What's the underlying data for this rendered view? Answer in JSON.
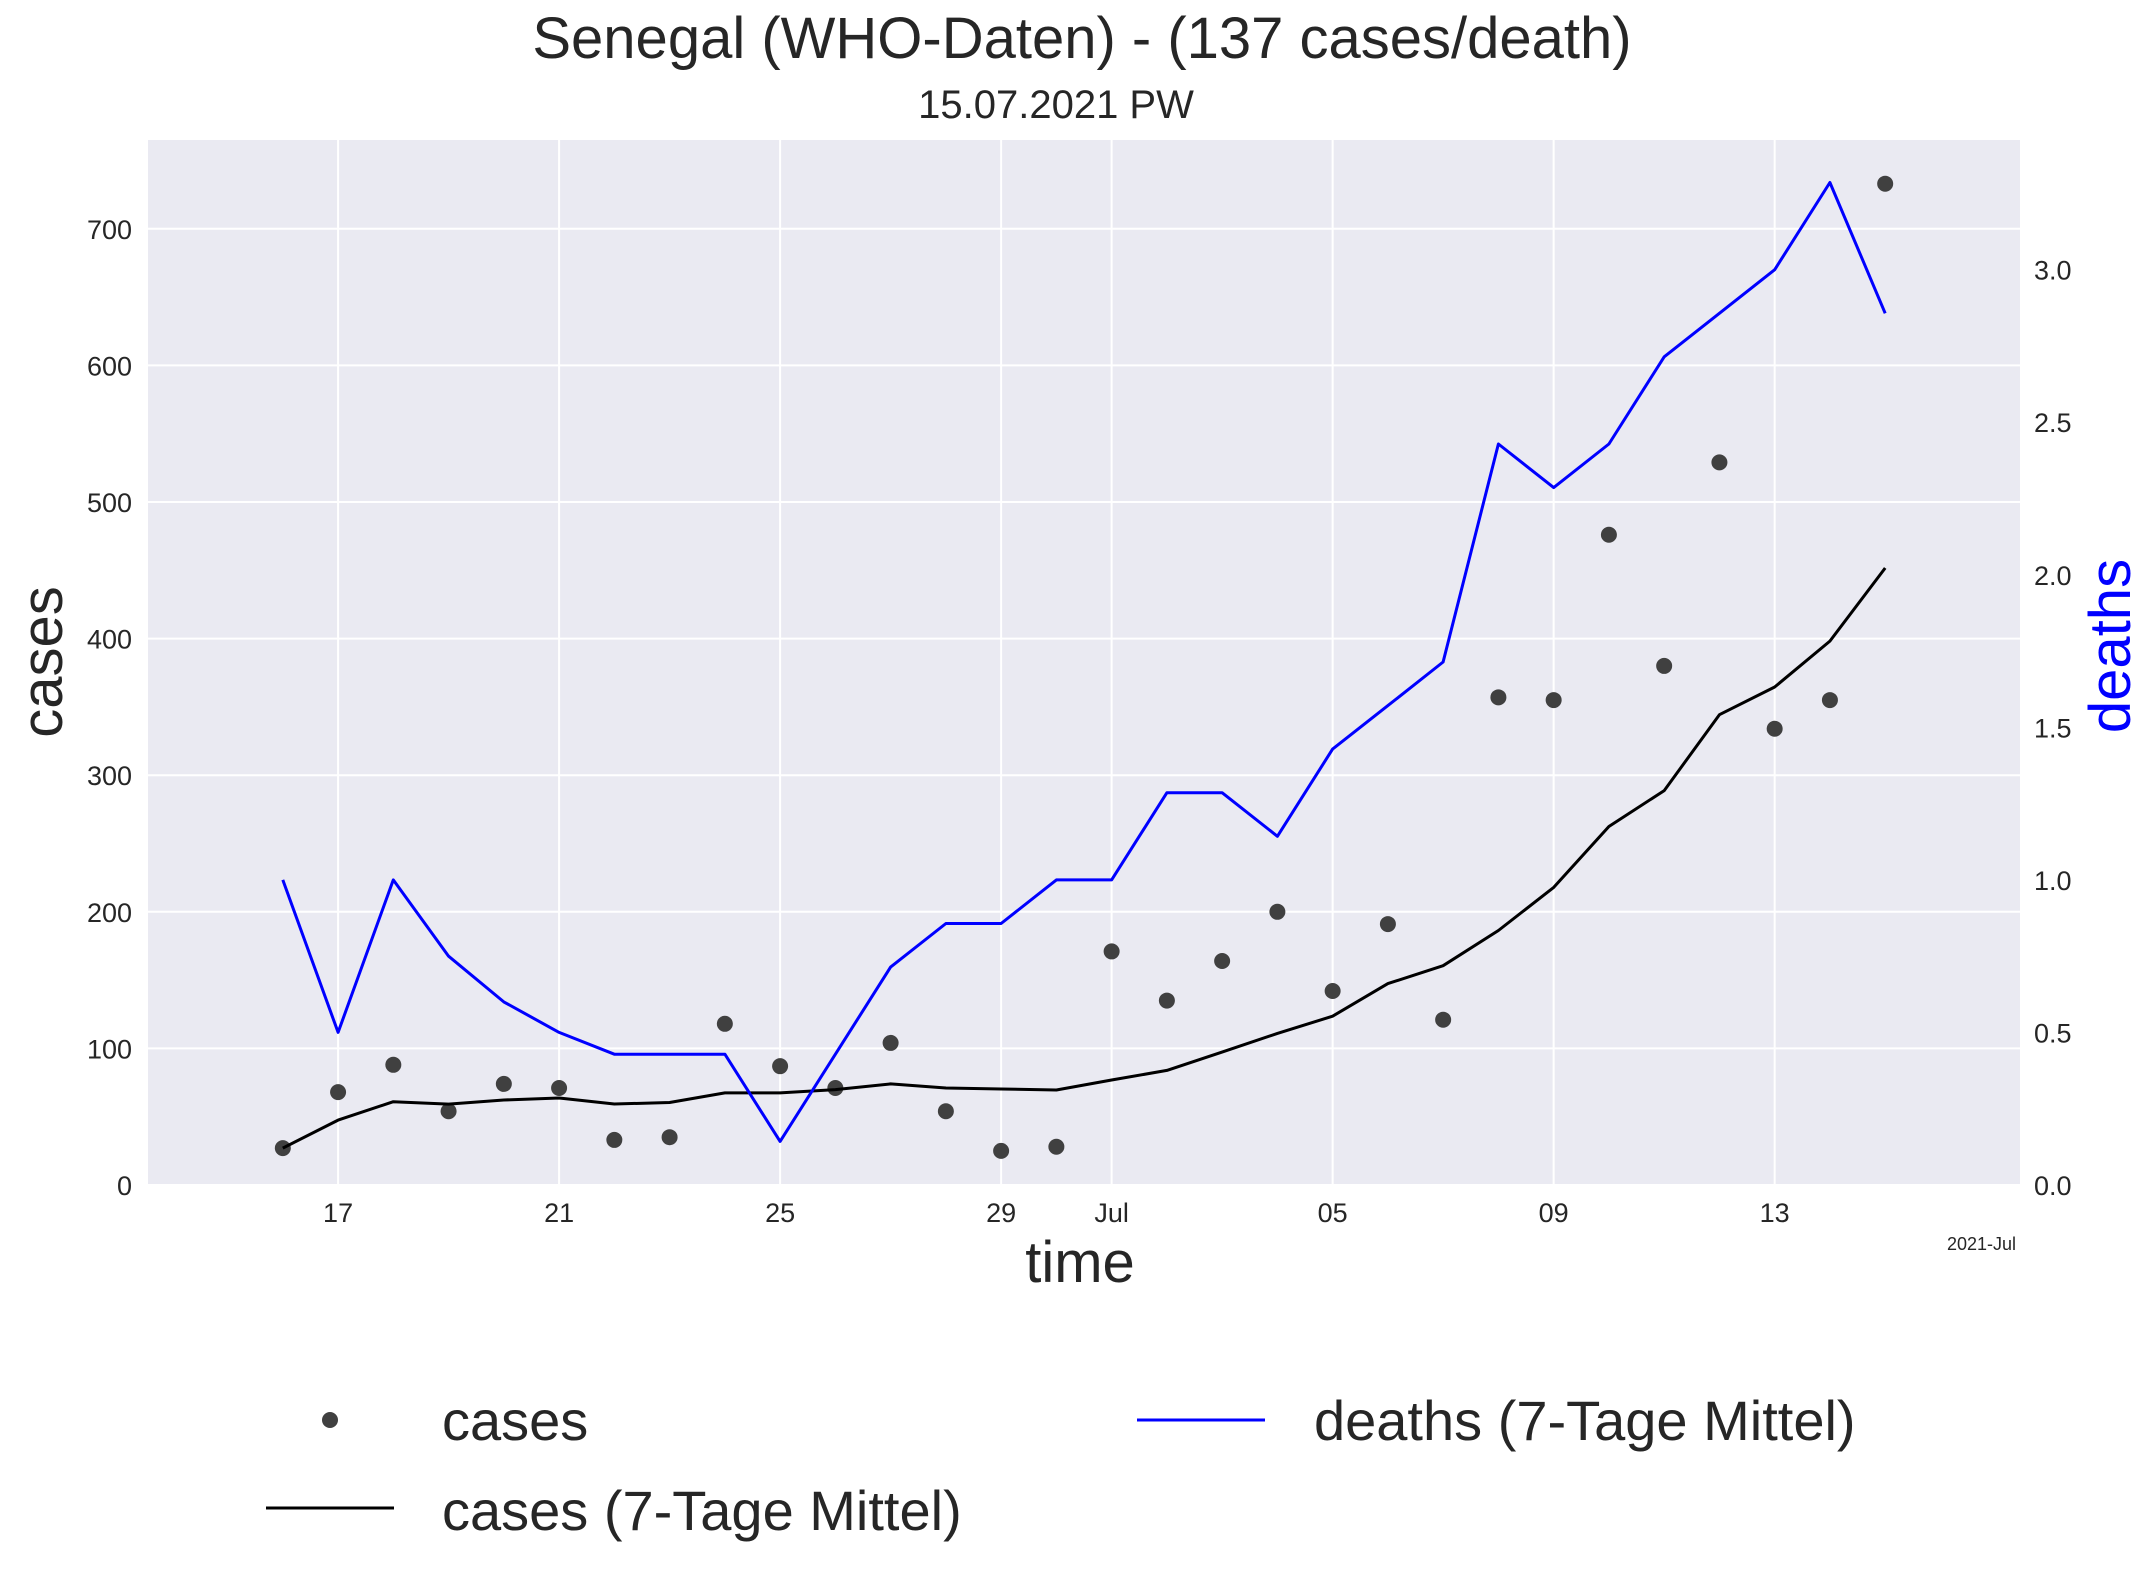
{
  "chart_data": {
    "type": "line",
    "title": "Senegal (WHO-Daten) - (137 cases/death)",
    "subtitle": "15.07.2021 PW",
    "xlabel": "time",
    "ylabel": "cases",
    "ylabel_right": "deaths",
    "x_offset_label": "2021-Jul",
    "dates": [
      "2021-06-16",
      "2021-06-17",
      "2021-06-18",
      "2021-06-19",
      "2021-06-20",
      "2021-06-21",
      "2021-06-22",
      "2021-06-23",
      "2021-06-24",
      "2021-06-25",
      "2021-06-26",
      "2021-06-27",
      "2021-06-28",
      "2021-06-29",
      "2021-06-30",
      "2021-07-01",
      "2021-07-02",
      "2021-07-03",
      "2021-07-04",
      "2021-07-05",
      "2021-07-06",
      "2021-07-07",
      "2021-07-08",
      "2021-07-09",
      "2021-07-10",
      "2021-07-11",
      "2021-07-12",
      "2021-07-13",
      "2021-07-14",
      "2021-07-15"
    ],
    "x_ticks": [
      {
        "date": "2021-06-17",
        "label": "17"
      },
      {
        "date": "2021-06-21",
        "label": "21"
      },
      {
        "date": "2021-06-25",
        "label": "25"
      },
      {
        "date": "2021-06-29",
        "label": "29"
      },
      {
        "date": "2021-07-01",
        "label": "Jul"
      },
      {
        "date": "2021-07-05",
        "label": "05"
      },
      {
        "date": "2021-07-09",
        "label": "09"
      },
      {
        "date": "2021-07-13",
        "label": "13"
      }
    ],
    "ylim": [
      0,
      765
    ],
    "yticks": [
      "0",
      "100",
      "200",
      "300",
      "400",
      "500",
      "600",
      "700"
    ],
    "ylim_right": [
      0,
      3.425
    ],
    "yticks_right": [
      "0.0",
      "0.5",
      "1.0",
      "1.5",
      "2.0",
      "2.5",
      "3.0"
    ],
    "grid": true,
    "legend_position": "bottom",
    "series": [
      {
        "name": "cases",
        "kind": "scatter",
        "axis": "left",
        "color": "#404040",
        "values": [
          27,
          68,
          88,
          54,
          74,
          71,
          33,
          35,
          118,
          87,
          71,
          104,
          54,
          25,
          28,
          171,
          135,
          164,
          200,
          142,
          191,
          121,
          357,
          355,
          476,
          380,
          529,
          334,
          355,
          733
        ]
      },
      {
        "name": "cases (7-Tage Mittel)",
        "kind": "line",
        "axis": "left",
        "color": "#000000",
        "values": [
          27,
          47.5,
          61,
          59.25,
          62.2,
          63.67,
          59.29,
          60.43,
          67.43,
          67.43,
          69.86,
          74,
          71,
          70.29,
          69.57,
          76.86,
          83.86,
          97.29,
          111,
          123.57,
          147.43,
          160.57,
          186.29,
          217.86,
          262.43,
          288.71,
          344.29,
          364.57,
          398.14,
          451.71
        ]
      },
      {
        "name": "deaths (7-Tage Mittel)",
        "kind": "line",
        "axis": "right",
        "color": "#0000ff",
        "values": [
          1.0,
          0.5,
          1.0,
          0.75,
          0.6,
          0.5,
          0.4286,
          0.4286,
          0.4286,
          0.1429,
          0.4286,
          0.7143,
          0.8571,
          0.8571,
          1.0,
          1.0,
          1.2857,
          1.2857,
          1.1429,
          1.4286,
          1.5714,
          1.7143,
          2.4286,
          2.2857,
          2.4286,
          2.7143,
          2.8571,
          3.0,
          3.2857,
          2.8571
        ]
      }
    ]
  },
  "colors": {
    "plot_background": "#eaeaf2",
    "grid": "#ffffff",
    "text": "#262626",
    "right_axis_label": "#0000ff"
  }
}
